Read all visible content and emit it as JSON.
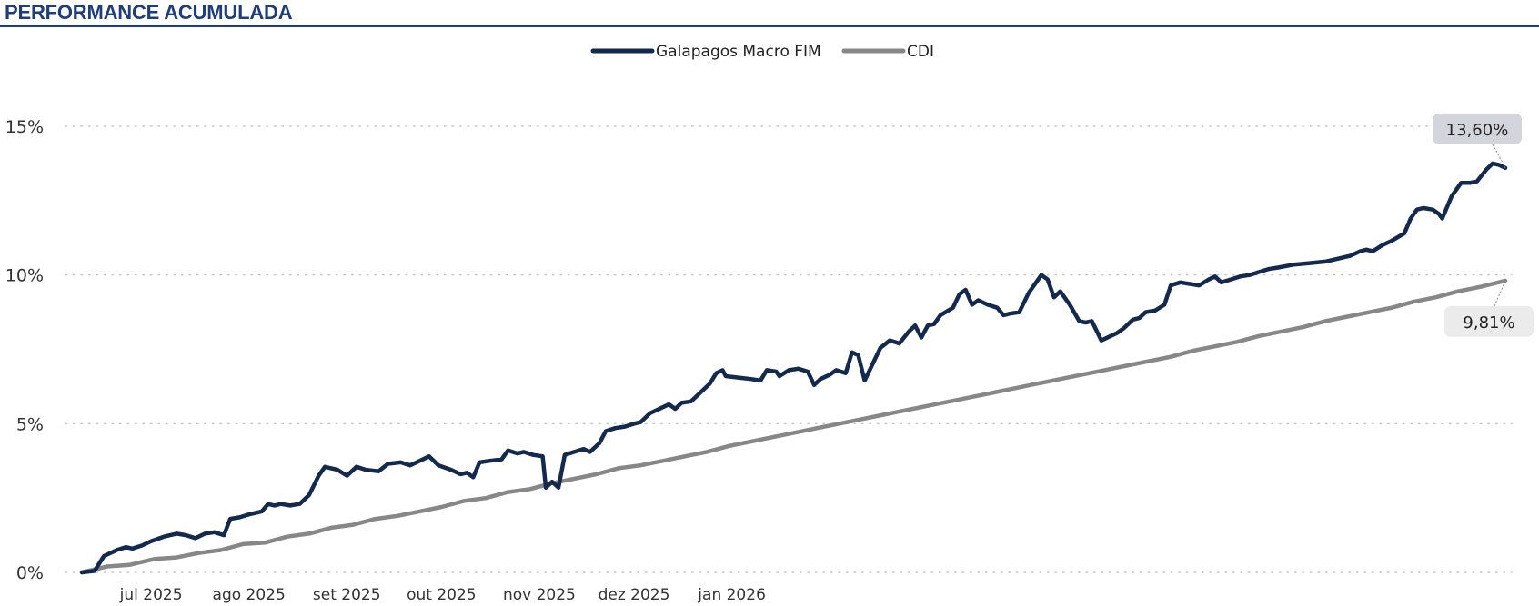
{
  "header": {
    "title": "PERFORMANCE ACUMULADA"
  },
  "colors": {
    "title": "#1f3d7a",
    "fund": "#14294e",
    "cdi": "#878787",
    "grid": "#c8c8c8",
    "label_fund_bg": "#d2d5dc",
    "label_cdi_bg": "#ebebeb"
  },
  "chart_data": {
    "type": "line",
    "title": "PERFORMANCE ACUMULADA",
    "xlabel": "",
    "ylabel": "",
    "x_ticks": [
      "jul 2025",
      "ago 2025",
      "set 2025",
      "out 2025",
      "nov 2025",
      "dez 2025",
      "jan 2026"
    ],
    "y_ticks": [
      "0%",
      "5%",
      "10%",
      "15%"
    ],
    "ylim": [
      0,
      15
    ],
    "legend": {
      "position": "top-center"
    },
    "grid": {
      "horizontal": true,
      "style": "dotted"
    },
    "series": [
      {
        "name": "Galapagos Macro FIM",
        "color": "#14294e",
        "end_label": "13,60%",
        "points": [
          [
            "2025-06-01",
            0.0
          ],
          [
            "2025-06-05",
            0.05
          ],
          [
            "2025-06-08",
            0.55
          ],
          [
            "2025-06-12",
            0.75
          ],
          [
            "2025-06-15",
            0.85
          ],
          [
            "2025-06-17",
            0.8
          ],
          [
            "2025-06-20",
            0.9
          ],
          [
            "2025-06-23",
            1.05
          ],
          [
            "2025-06-27",
            1.2
          ],
          [
            "2025-07-01",
            1.3
          ],
          [
            "2025-07-04",
            1.25
          ],
          [
            "2025-07-07",
            1.15
          ],
          [
            "2025-07-10",
            1.3
          ],
          [
            "2025-07-13",
            1.35
          ],
          [
            "2025-07-16",
            1.25
          ],
          [
            "2025-07-18",
            1.8
          ],
          [
            "2025-07-21",
            1.85
          ],
          [
            "2025-07-24",
            1.95
          ],
          [
            "2025-07-28",
            2.05
          ],
          [
            "2025-07-30",
            2.3
          ],
          [
            "2025-08-01",
            2.25
          ],
          [
            "2025-08-03",
            2.3
          ],
          [
            "2025-08-06",
            2.25
          ],
          [
            "2025-08-09",
            2.3
          ],
          [
            "2025-08-12",
            2.6
          ],
          [
            "2025-08-15",
            3.25
          ],
          [
            "2025-08-17",
            3.55
          ],
          [
            "2025-08-21",
            3.45
          ],
          [
            "2025-08-24",
            3.25
          ],
          [
            "2025-08-27",
            3.55
          ],
          [
            "2025-08-30",
            3.45
          ],
          [
            "2025-09-03",
            3.4
          ],
          [
            "2025-09-06",
            3.65
          ],
          [
            "2025-09-10",
            3.7
          ],
          [
            "2025-09-13",
            3.6
          ],
          [
            "2025-09-16",
            3.75
          ],
          [
            "2025-09-19",
            3.9
          ],
          [
            "2025-09-22",
            3.6
          ],
          [
            "2025-09-26",
            3.45
          ],
          [
            "2025-09-29",
            3.3
          ],
          [
            "2025-10-01",
            3.35
          ],
          [
            "2025-10-03",
            3.2
          ],
          [
            "2025-10-05",
            3.7
          ],
          [
            "2025-10-08",
            3.75
          ],
          [
            "2025-10-12",
            3.8
          ],
          [
            "2025-10-14",
            4.1
          ],
          [
            "2025-10-17",
            4.0
          ],
          [
            "2025-10-19",
            4.05
          ],
          [
            "2025-10-22",
            3.95
          ],
          [
            "2025-10-25",
            3.9
          ],
          [
            "2025-10-26",
            2.85
          ],
          [
            "2025-10-28",
            3.05
          ],
          [
            "2025-10-30",
            2.85
          ],
          [
            "2025-11-01",
            3.95
          ],
          [
            "2025-11-04",
            4.05
          ],
          [
            "2025-11-07",
            4.15
          ],
          [
            "2025-11-09",
            4.05
          ],
          [
            "2025-11-12",
            4.35
          ],
          [
            "2025-11-14",
            4.75
          ],
          [
            "2025-11-17",
            4.85
          ],
          [
            "2025-11-20",
            4.9
          ],
          [
            "2025-11-23",
            5.0
          ],
          [
            "2025-11-25",
            5.05
          ],
          [
            "2025-11-28",
            5.35
          ],
          [
            "2025-12-02",
            5.55
          ],
          [
            "2025-12-04",
            5.65
          ],
          [
            "2025-12-06",
            5.5
          ],
          [
            "2025-12-08",
            5.7
          ],
          [
            "2025-12-11",
            5.75
          ],
          [
            "2025-12-14",
            6.05
          ],
          [
            "2025-12-17",
            6.35
          ],
          [
            "2025-12-19",
            6.7
          ],
          [
            "2025-12-21",
            6.8
          ],
          [
            "2025-12-22",
            6.6
          ],
          [
            "2025-12-26",
            6.55
          ],
          [
            "2025-12-30",
            6.5
          ],
          [
            "2026-01-02",
            6.45
          ],
          [
            "2026-01-04",
            6.8
          ],
          [
            "2026-01-07",
            6.75
          ],
          [
            "2026-01-08",
            6.6
          ],
          [
            "2026-01-11",
            6.8
          ],
          [
            "2026-01-14",
            6.85
          ],
          [
            "2026-01-17",
            6.75
          ],
          [
            "2026-01-19",
            6.3
          ],
          [
            "2026-01-21",
            6.5
          ],
          [
            "2026-01-24",
            6.65
          ],
          [
            "2026-01-26",
            6.8
          ],
          [
            "2026-01-29",
            6.7
          ],
          [
            "2026-01-31",
            7.4
          ],
          [
            "2026-02-02",
            7.3
          ],
          [
            "2026-02-04",
            6.45
          ],
          [
            "2026-02-09",
            7.55
          ],
          [
            "2026-02-12",
            7.8
          ],
          [
            "2026-02-15",
            7.7
          ],
          [
            "2026-02-18",
            8.1
          ],
          [
            "2026-02-20",
            8.3
          ],
          [
            "2026-02-22",
            7.9
          ],
          [
            "2026-02-24",
            8.3
          ],
          [
            "2026-02-26",
            8.35
          ],
          [
            "2026-02-28",
            8.65
          ],
          [
            "2026-03-04",
            8.9
          ],
          [
            "2026-03-06",
            9.35
          ],
          [
            "2026-03-08",
            9.5
          ],
          [
            "2026-03-10",
            9.0
          ],
          [
            "2026-03-12",
            9.15
          ],
          [
            "2026-03-15",
            9.0
          ],
          [
            "2026-03-18",
            8.9
          ],
          [
            "2026-03-20",
            8.65
          ],
          [
            "2026-03-22",
            8.7
          ],
          [
            "2026-03-25",
            8.75
          ],
          [
            "2026-03-28",
            9.4
          ],
          [
            "2026-04-01",
            10.0
          ],
          [
            "2026-04-03",
            9.85
          ],
          [
            "2026-04-05",
            9.25
          ],
          [
            "2026-04-07",
            9.45
          ],
          [
            "2026-04-10",
            9.0
          ],
          [
            "2026-04-13",
            8.45
          ],
          [
            "2026-04-15",
            8.4
          ],
          [
            "2026-04-17",
            8.45
          ],
          [
            "2026-04-20",
            7.8
          ],
          [
            "2026-04-23",
            7.95
          ],
          [
            "2026-04-25",
            8.05
          ],
          [
            "2026-04-27",
            8.2
          ],
          [
            "2026-04-30",
            8.5
          ],
          [
            "2026-05-02",
            8.55
          ],
          [
            "2026-05-04",
            8.75
          ],
          [
            "2026-05-07",
            8.8
          ],
          [
            "2026-05-10",
            9.0
          ],
          [
            "2026-05-12",
            9.65
          ],
          [
            "2026-05-15",
            9.75
          ],
          [
            "2026-05-18",
            9.7
          ],
          [
            "2026-05-21",
            9.65
          ],
          [
            "2026-05-24",
            9.85
          ],
          [
            "2026-05-26",
            9.95
          ],
          [
            "2026-05-28",
            9.75
          ],
          [
            "2026-05-31",
            9.85
          ],
          [
            "2026-06-03",
            9.95
          ],
          [
            "2026-06-06",
            10.0
          ],
          [
            "2026-06-09",
            10.1
          ],
          [
            "2026-06-12",
            10.2
          ],
          [
            "2026-06-15",
            10.25
          ],
          [
            "2026-06-20",
            10.35
          ],
          [
            "2026-06-25",
            10.4
          ],
          [
            "2026-06-30",
            10.45
          ],
          [
            "2026-07-04",
            10.55
          ],
          [
            "2026-07-08",
            10.65
          ],
          [
            "2026-07-11",
            10.8
          ],
          [
            "2026-07-13",
            10.85
          ],
          [
            "2026-07-15",
            10.8
          ],
          [
            "2026-07-18",
            11.0
          ],
          [
            "2026-07-21",
            11.15
          ],
          [
            "2026-07-25",
            11.4
          ],
          [
            "2026-07-27",
            11.9
          ],
          [
            "2026-07-29",
            12.2
          ],
          [
            "2026-07-31",
            12.25
          ],
          [
            "2026-08-03",
            12.2
          ],
          [
            "2026-08-05",
            12.05
          ],
          [
            "2026-08-06",
            11.9
          ],
          [
            "2026-08-09",
            12.65
          ],
          [
            "2026-08-12",
            13.1
          ],
          [
            "2026-08-15",
            13.1
          ],
          [
            "2026-08-17",
            13.15
          ],
          [
            "2026-08-20",
            13.55
          ],
          [
            "2026-08-22",
            13.75
          ],
          [
            "2026-08-24",
            13.7
          ],
          [
            "2026-08-26",
            13.6
          ]
        ]
      },
      {
        "name": "CDI",
        "color": "#878787",
        "end_label": "9,81%",
        "points": [
          [
            "2025-06-01",
            0.0
          ],
          [
            "2025-06-09",
            0.2
          ],
          [
            "2025-06-16",
            0.25
          ],
          [
            "2025-06-24",
            0.45
          ],
          [
            "2025-07-01",
            0.5
          ],
          [
            "2025-07-08",
            0.65
          ],
          [
            "2025-07-15",
            0.75
          ],
          [
            "2025-07-22",
            0.95
          ],
          [
            "2025-07-29",
            1.0
          ],
          [
            "2025-08-05",
            1.2
          ],
          [
            "2025-08-12",
            1.3
          ],
          [
            "2025-08-19",
            1.5
          ],
          [
            "2025-08-26",
            1.6
          ],
          [
            "2025-09-02",
            1.8
          ],
          [
            "2025-09-09",
            1.9
          ],
          [
            "2025-09-16",
            2.05
          ],
          [
            "2025-09-23",
            2.2
          ],
          [
            "2025-09-30",
            2.4
          ],
          [
            "2025-10-07",
            2.5
          ],
          [
            "2025-10-14",
            2.7
          ],
          [
            "2025-10-21",
            2.8
          ],
          [
            "2025-10-28",
            3.0
          ],
          [
            "2025-11-04",
            3.15
          ],
          [
            "2025-11-11",
            3.3
          ],
          [
            "2025-11-18",
            3.5
          ],
          [
            "2025-11-25",
            3.6
          ],
          [
            "2025-12-02",
            3.75
          ],
          [
            "2025-12-09",
            3.9
          ],
          [
            "2025-12-16",
            4.05
          ],
          [
            "2025-12-23",
            4.25
          ],
          [
            "2025-12-30",
            4.4
          ],
          [
            "2026-01-06",
            4.55
          ],
          [
            "2026-01-13",
            4.7
          ],
          [
            "2026-01-20",
            4.85
          ],
          [
            "2026-01-27",
            5.0
          ],
          [
            "2026-02-03",
            5.15
          ],
          [
            "2026-02-10",
            5.3
          ],
          [
            "2026-02-17",
            5.45
          ],
          [
            "2026-02-24",
            5.6
          ],
          [
            "2026-03-03",
            5.75
          ],
          [
            "2026-03-10",
            5.9
          ],
          [
            "2026-03-17",
            6.05
          ],
          [
            "2026-03-24",
            6.2
          ],
          [
            "2026-03-31",
            6.35
          ],
          [
            "2026-04-07",
            6.5
          ],
          [
            "2026-04-14",
            6.65
          ],
          [
            "2026-04-21",
            6.8
          ],
          [
            "2026-04-28",
            6.95
          ],
          [
            "2026-05-05",
            7.1
          ],
          [
            "2026-05-12",
            7.25
          ],
          [
            "2026-05-19",
            7.45
          ],
          [
            "2026-05-26",
            7.6
          ],
          [
            "2026-06-02",
            7.75
          ],
          [
            "2026-06-09",
            7.95
          ],
          [
            "2026-06-16",
            8.1
          ],
          [
            "2026-06-23",
            8.25
          ],
          [
            "2026-06-30",
            8.45
          ],
          [
            "2026-07-07",
            8.6
          ],
          [
            "2026-07-14",
            8.75
          ],
          [
            "2026-07-21",
            8.9
          ],
          [
            "2026-07-28",
            9.1
          ],
          [
            "2026-08-04",
            9.25
          ],
          [
            "2026-08-11",
            9.45
          ],
          [
            "2026-08-18",
            9.6
          ],
          [
            "2026-08-26",
            9.81
          ]
        ]
      }
    ]
  }
}
